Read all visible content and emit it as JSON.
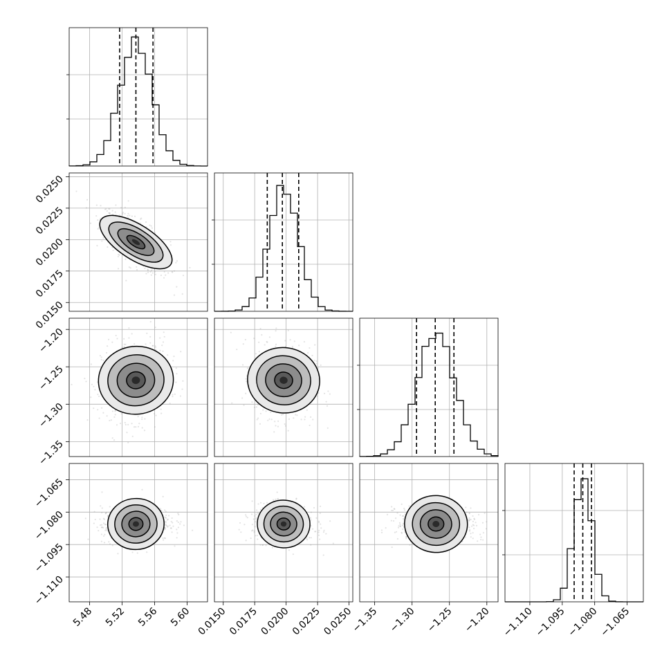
{
  "chart_data": {
    "type": "corner",
    "title": "",
    "parameters": [
      {
        "range": [
          5.455,
          5.625
        ],
        "mean": 5.537,
        "std": 0.02,
        "quantiles": [
          5.517,
          5.537,
          5.558
        ],
        "ticks": [
          5.48,
          5.52,
          5.56,
          5.6
        ],
        "tick_labels": [
          "5.48",
          "5.52",
          "5.56",
          "5.60"
        ]
      },
      {
        "range": [
          0.0143,
          0.0253
        ],
        "mean": 0.0198,
        "std": 0.00118,
        "quantiles": [
          0.0185,
          0.0197,
          0.021
        ],
        "ticks": [
          0.015,
          0.0175,
          0.02,
          0.0225,
          0.025
        ],
        "tick_labels": [
          "0.0150",
          "0.0175",
          "0.0200",
          "0.0225",
          "0.0250"
        ]
      },
      {
        "range": [
          -1.37,
          -1.185
        ],
        "mean": -1.268,
        "std": 0.025,
        "quantiles": [
          -1.294,
          -1.269,
          -1.244
        ],
        "ticks": [
          -1.35,
          -1.3,
          -1.25,
          -1.2
        ],
        "tick_labels": [
          "−1.35",
          "−1.30",
          "−1.25",
          "−1.20"
        ]
      },
      {
        "range": [
          -1.1215,
          -1.0575
        ],
        "mean": -1.0855,
        "std": 0.0042,
        "quantiles": [
          -1.0895,
          -1.0855,
          -1.0815
        ],
        "ticks": [
          -1.11,
          -1.095,
          -1.08,
          -1.065
        ],
        "tick_labels": [
          "−1.110",
          "−1.095",
          "−1.080",
          "−1.065"
        ]
      }
    ],
    "correlations": [
      [
        1.0,
        -0.7,
        0.1,
        0.1
      ],
      [
        -0.7,
        1.0,
        -0.1,
        -0.1
      ],
      [
        0.1,
        -0.1,
        1.0,
        -0.1
      ],
      [
        0.1,
        -0.1,
        -0.1,
        1.0
      ]
    ],
    "contour_levels_sigma": [
      0.5,
      1.0,
      1.5,
      2.0
    ],
    "grid": true,
    "colors": {
      "line": "#000000",
      "grid": "#b0b0b0",
      "points": "#9a9a9a"
    }
  }
}
